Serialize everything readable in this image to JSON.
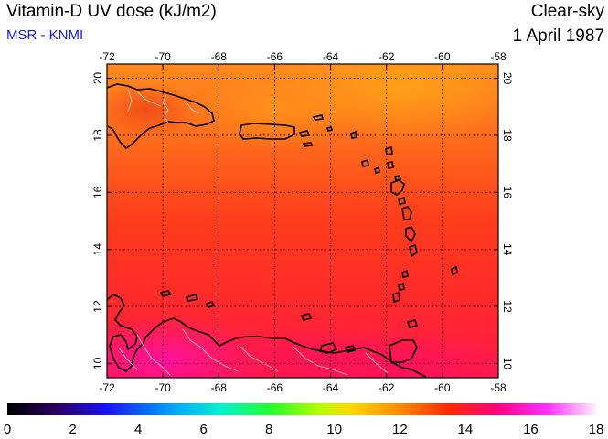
{
  "header": {
    "title": "Vitamin-D UV dose (kJ/m2)",
    "source": "MSR - KNMI",
    "condition": "Clear-sky",
    "date": "1 April 1987"
  },
  "map": {
    "lon_min": -72,
    "lon_max": -58,
    "lat_min": 9.5,
    "lat_max": 20.5,
    "lon_ticks": [
      -72,
      -70,
      -68,
      -66,
      -64,
      -62,
      -60,
      -58
    ],
    "lat_ticks": [
      10,
      12,
      14,
      16,
      18,
      20
    ],
    "grid": "dotted",
    "land_outline_color": "#000000",
    "border_color": "#c8c8c8",
    "field_colors": {
      "high_north": "#ffa018",
      "mid": "#ff3a1c",
      "south": "#ff1650",
      "max_venezuela": "#ff10a0",
      "hispaniola": "#f05020"
    }
  },
  "colorbar": {
    "min": 0,
    "max": 18,
    "tick_labels": [
      "0",
      "2",
      "4",
      "6",
      "8",
      "10",
      "12",
      "14",
      "16",
      "18"
    ],
    "stops": [
      {
        "v": 0,
        "c": "#000000"
      },
      {
        "v": 1.5,
        "c": "#2a0060"
      },
      {
        "v": 3,
        "c": "#1a10ff"
      },
      {
        "v": 5,
        "c": "#00a0ff"
      },
      {
        "v": 6.5,
        "c": "#00f0d0"
      },
      {
        "v": 8,
        "c": "#20ff30"
      },
      {
        "v": 9.5,
        "c": "#b0ff00"
      },
      {
        "v": 10.5,
        "c": "#ffd800"
      },
      {
        "v": 12,
        "c": "#ff8a00"
      },
      {
        "v": 13.5,
        "c": "#ff2800"
      },
      {
        "v": 15,
        "c": "#ff0080"
      },
      {
        "v": 16.5,
        "c": "#ff30ff"
      },
      {
        "v": 18,
        "c": "#fff0ff"
      }
    ]
  }
}
